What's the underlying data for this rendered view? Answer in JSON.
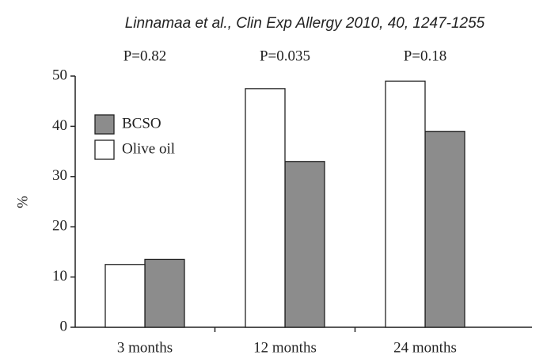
{
  "chart_data": {
    "type": "bar",
    "title": "Linnamaa et al., Clin Exp Allergy 2010, 40, 1247-1255",
    "y_label": "%",
    "annotations": [
      "P=0.82",
      "P=0.035",
      "P=0.18"
    ],
    "categories": [
      "3 months",
      "12 months",
      "24 months"
    ],
    "series": [
      {
        "name": "BCSO",
        "color": "#8c8c8c",
        "values": [
          13.5,
          33,
          39
        ]
      },
      {
        "name": "Olive oil",
        "color": "#ffffff",
        "values": [
          12.5,
          47.5,
          49
        ]
      }
    ],
    "ylim": [
      0,
      50
    ],
    "yticks": [
      0,
      10,
      20,
      30,
      40,
      50
    ],
    "legend": "upper left"
  }
}
